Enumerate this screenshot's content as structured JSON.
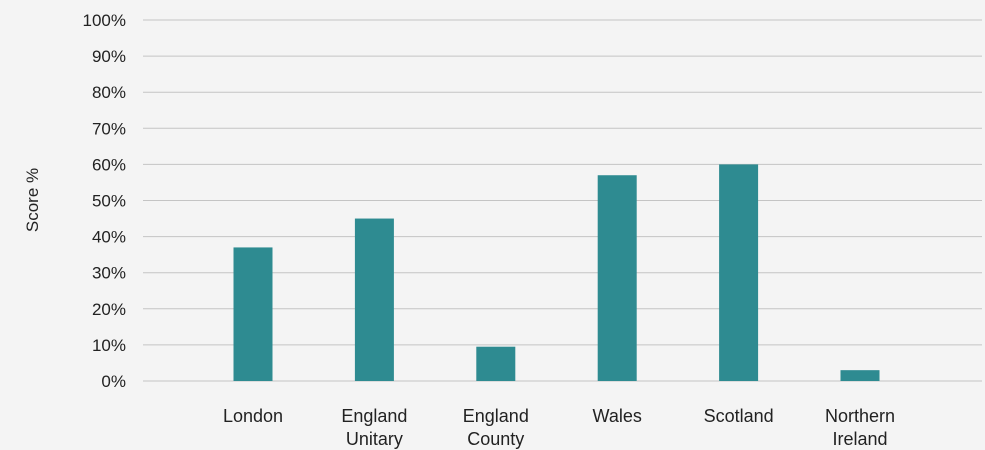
{
  "chart_data": {
    "type": "bar",
    "categories": [
      [
        "London"
      ],
      [
        "England",
        "Unitary"
      ],
      [
        "England",
        "County"
      ],
      [
        "Wales"
      ],
      [
        "Scotland"
      ],
      [
        "Northern",
        "Ireland"
      ]
    ],
    "values": [
      37,
      45,
      9.5,
      57,
      60,
      3
    ],
    "ylabel": "Score %",
    "ylim": [
      0,
      100
    ],
    "yticks": [
      "0%",
      "10%",
      "20%",
      "30%",
      "40%",
      "50%",
      "60%",
      "70%",
      "80%",
      "90%",
      "100%"
    ],
    "grid": true,
    "bar_color": "#2e8b91"
  }
}
